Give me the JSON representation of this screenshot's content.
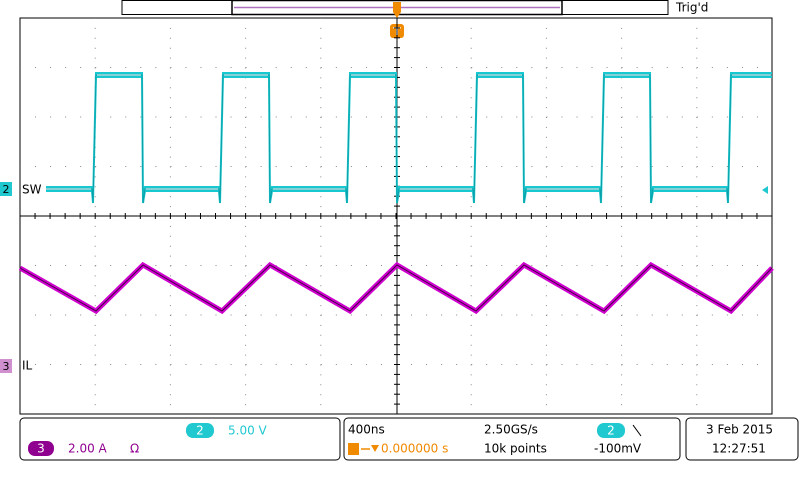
{
  "header": {
    "trigger_marker": "T",
    "trigger_status": "Trig'd"
  },
  "channels": [
    {
      "number": "2",
      "label": "SW",
      "scale": "5.00 V"
    },
    {
      "number": "3",
      "label": "IL",
      "scale": "2.00 A",
      "coupling": "Ω"
    }
  ],
  "acquisition": {
    "timebase": "400ns",
    "sample_rate": "2.50GS/s",
    "trigger_position": "0.000000 s",
    "record_length": "10k points"
  },
  "trigger": {
    "source": "2",
    "level": "-100mV"
  },
  "clock": {
    "date": "3 Feb 2015",
    "time": "12:27:51"
  }
}
